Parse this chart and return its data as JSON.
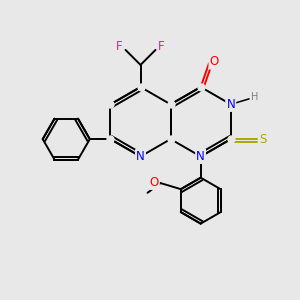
{
  "background_color": "#e8e8e8",
  "bond_color": "#000000",
  "atom_colors": {
    "N": "#0000ff",
    "O": "#ff0000",
    "S": "#aaaa00",
    "F": "#ff1493",
    "H": "#808080",
    "C": "#000000"
  },
  "figsize": [
    3.0,
    3.0
  ],
  "dpi": 100,
  "lw": 1.4,
  "fs": 8.5,
  "fs_small": 7.0
}
